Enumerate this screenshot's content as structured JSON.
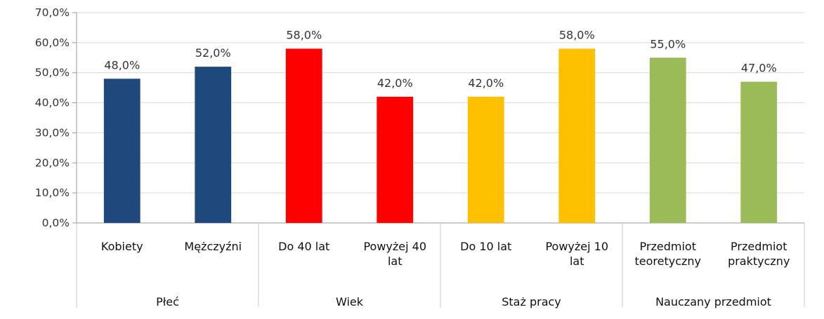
{
  "chart_data": {
    "type": "bar",
    "ylim": [
      0,
      70
    ],
    "ytick_labels": [
      "0,0%",
      "10,0%",
      "20,0%",
      "30,0%",
      "40,0%",
      "50,0%",
      "60,0%",
      "70,0%"
    ],
    "grid": true,
    "groups": [
      {
        "name": "Płeć",
        "color": "#1F497D",
        "bars": [
          {
            "category": [
              "Kobiety"
            ],
            "value": 48,
            "label": "48,0%"
          },
          {
            "category": [
              "Mężczyźni"
            ],
            "value": 52,
            "label": "52,0%"
          }
        ]
      },
      {
        "name": "Wiek",
        "color": "#FF0000",
        "bars": [
          {
            "category": [
              "Do 40 lat"
            ],
            "value": 58,
            "label": "58,0%"
          },
          {
            "category": [
              "Powyżej 40",
              "lat"
            ],
            "value": 42,
            "label": "42,0%"
          }
        ]
      },
      {
        "name": "Staż pracy",
        "color": "#FFC000",
        "bars": [
          {
            "category": [
              "Do 10 lat"
            ],
            "value": 42,
            "label": "42,0%"
          },
          {
            "category": [
              "Powyżej 10",
              "lat"
            ],
            "value": 58,
            "label": "58,0%"
          }
        ]
      },
      {
        "name": "Nauczany przedmiot",
        "color": "#9BBB59",
        "bars": [
          {
            "category": [
              "Przedmiot",
              "teoretyczny"
            ],
            "value": 55,
            "label": "55,0%"
          },
          {
            "category": [
              "Przedmiot",
              "praktyczny"
            ],
            "value": 47,
            "label": "47,0%"
          }
        ]
      }
    ]
  }
}
